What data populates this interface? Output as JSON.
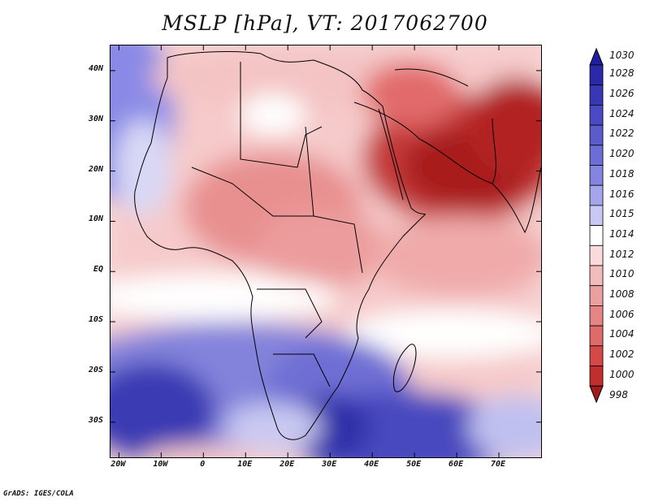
{
  "title": "MSLP [hPa], VT: 2017062700",
  "map": {
    "variable": "Mean sea level pressure",
    "units": "hPa",
    "valid_time": "2017062700",
    "lat_labels": [
      "40N",
      "30N",
      "20N",
      "10N",
      "EQ",
      "10S",
      "20S",
      "30S"
    ],
    "lon_labels": [
      "20W",
      "10W",
      "0",
      "10E",
      "20E",
      "30E",
      "40E",
      "50E",
      "60E",
      "70E"
    ],
    "lat_values": [
      40,
      30,
      20,
      10,
      0,
      -10,
      -20,
      -30
    ],
    "lon_values": [
      -20,
      -10,
      0,
      10,
      20,
      30,
      40,
      50,
      60,
      70
    ],
    "lat_range": [
      -37,
      45
    ],
    "lon_range": [
      -22,
      80
    ],
    "colors": {
      "low_deep": "#b31b1b",
      "low": "#e05a5a",
      "neutral": "#ffffff",
      "high": "#8a8ae6",
      "high_deep": "#1f1f9e"
    }
  },
  "colorbar": {
    "levels": [
      "1030",
      "1028",
      "1026",
      "1024",
      "1022",
      "1020",
      "1018",
      "1016",
      "1015",
      "1014",
      "1012",
      "1010",
      "1008",
      "1006",
      "1004",
      "1002",
      "1000",
      "998"
    ],
    "colors": [
      "#1f1f9e",
      "#2a2aa8",
      "#3838b5",
      "#4a4ac2",
      "#5b5bcc",
      "#6d6dd6",
      "#8585e0",
      "#a5a5ec",
      "#c8c8f5",
      "#ffffff",
      "#fadada",
      "#f3bcbc",
      "#eba0a0",
      "#e58585",
      "#df6a6a",
      "#d44848",
      "#c12e2e",
      "#a51a1a"
    ]
  },
  "credit": "GrADS: IGES/COLA"
}
